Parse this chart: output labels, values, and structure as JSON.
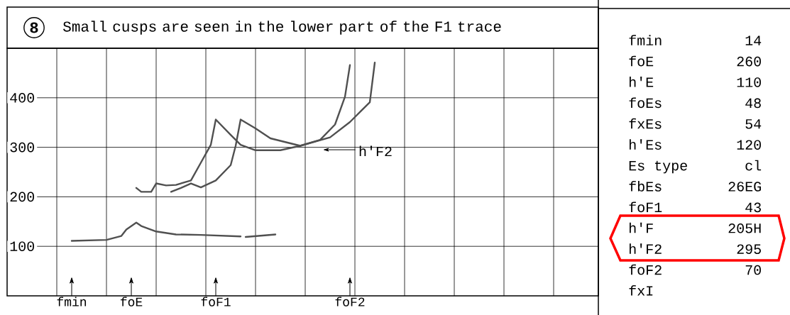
{
  "chart_data": [
    {
      "type": "line",
      "title": "Small cusps are seen in the lower part of the F1 trace",
      "annotations": [
        "8",
        "h'F2"
      ],
      "categories": [
        null,
        null,
        null,
        null,
        null,
        null,
        null,
        null,
        null,
        null,
        null,
        null,
        null,
        "fmin",
        null,
        null,
        null,
        null,
        null,
        null,
        null,
        null,
        null,
        null,
        null,
        "foE",
        null,
        null,
        null,
        null,
        null,
        null,
        null,
        null,
        null,
        null,
        null,
        null,
        null,
        null,
        null,
        null,
        "foF1",
        null,
        null,
        null,
        null,
        null,
        null,
        null,
        null,
        null,
        null,
        null,
        null,
        null,
        null,
        null,
        null,
        null,
        null,
        null,
        null,
        null,
        null,
        null,
        null,
        null,
        null,
        "foF2",
        null,
        null,
        null,
        null,
        null,
        null,
        null,
        null,
        null,
        null,
        null,
        null,
        null,
        null,
        null,
        null,
        null,
        null,
        null,
        null,
        null,
        null,
        null,
        null,
        null,
        null,
        null,
        null,
        null,
        null,
        null,
        null,
        null,
        null,
        null,
        null,
        null,
        null,
        null,
        null,
        null,
        null,
        null,
        null,
        null,
        null,
        null,
        null,
        null,
        null
      ],
      "ylim": [
        0,
        500
      ],
      "yticks": [
        100,
        200,
        300,
        400
      ],
      "grid": true,
      "series": [
        {
          "color": "#505050",
          "values": [
            null,
            null,
            null,
            null,
            null,
            null,
            null,
            null,
            null,
            null,
            null,
            null,
            null,
            111,
            null,
            null,
            null,
            null,
            null,
            null,
            113,
            null,
            null,
            121,
            134,
            null,
            148,
            141,
            null,
            null,
            130,
            null,
            null,
            null,
            124,
            null,
            null,
            null,
            null,
            123,
            null,
            null,
            null,
            null,
            null,
            null,
            null,
            120,
            null,
            null,
            null,
            null,
            null,
            null,
            null,
            null,
            null,
            null,
            null,
            null,
            null,
            null,
            null,
            null,
            null,
            null,
            null,
            null,
            null,
            null,
            null,
            null,
            null,
            null,
            null,
            null,
            null,
            null,
            null,
            null,
            null,
            null,
            null,
            null,
            null,
            null,
            null,
            null,
            null,
            null,
            null,
            null,
            null,
            null,
            null,
            null,
            null,
            null,
            null,
            null,
            null,
            null,
            null,
            null,
            null,
            null,
            null,
            null,
            null,
            null,
            null,
            null,
            null,
            null,
            null,
            null,
            null,
            null,
            null,
            null
          ]
        },
        {
          "color": "#505050",
          "values": [
            null,
            null,
            null,
            null,
            null,
            null,
            null,
            null,
            null,
            null,
            null,
            null,
            null,
            null,
            null,
            null,
            null,
            null,
            null,
            null,
            null,
            null,
            null,
            null,
            null,
            null,
            null,
            null,
            null,
            null,
            null,
            null,
            null,
            null,
            null,
            null,
            null,
            null,
            null,
            null,
            null,
            null,
            null,
            null,
            null,
            null,
            null,
            null,
            119,
            null,
            null,
            null,
            null,
            null,
            124,
            null,
            null,
            null,
            null,
            null,
            null,
            null,
            null,
            null,
            null,
            null,
            null,
            null,
            null,
            null,
            null,
            null,
            null,
            null,
            null,
            null,
            null,
            null,
            null,
            null,
            null,
            null,
            null,
            null,
            null,
            null,
            null,
            null,
            null,
            null,
            null,
            null,
            null,
            null,
            null,
            null,
            null,
            null,
            null,
            null,
            null,
            null,
            null,
            null,
            null,
            null,
            null,
            null,
            null,
            null,
            null,
            null,
            null,
            null,
            null,
            null,
            null,
            null,
            null,
            null
          ]
        },
        {
          "color": "#505050",
          "values": [
            null,
            null,
            null,
            null,
            null,
            null,
            null,
            null,
            null,
            null,
            null,
            null,
            null,
            null,
            null,
            null,
            null,
            null,
            null,
            null,
            null,
            null,
            null,
            null,
            null,
            null,
            218,
            210,
            null,
            210,
            227,
            null,
            223,
            null,
            224,
            null,
            null,
            233,
            null,
            269,
            null,
            305,
            356,
            null,
            null,
            325,
            null,
            305,
            null,
            null,
            294,
            null,
            null,
            null,
            null,
            294,
            null,
            null,
            null,
            303,
            null,
            null,
            null,
            315,
            null,
            null,
            346,
            null,
            402,
            466,
            null,
            null,
            null,
            null,
            null,
            null,
            null,
            null,
            null,
            null,
            null,
            null,
            null,
            null,
            null,
            null,
            null,
            null,
            null,
            null,
            null,
            null,
            null,
            null,
            null,
            null,
            null,
            null,
            null,
            null,
            null,
            null,
            null,
            null,
            null,
            null,
            null,
            null,
            null,
            null,
            null,
            null,
            null,
            null,
            null,
            null,
            null,
            null,
            null,
            null
          ]
        },
        {
          "color": "#505050",
          "values": [
            null,
            null,
            null,
            null,
            null,
            null,
            null,
            null,
            null,
            null,
            null,
            null,
            null,
            null,
            null,
            null,
            null,
            null,
            null,
            null,
            null,
            null,
            null,
            null,
            null,
            null,
            null,
            null,
            null,
            null,
            null,
            null,
            null,
            210,
            null,
            218,
            null,
            227,
            null,
            219,
            null,
            null,
            233,
            null,
            null,
            264,
            303,
            356,
            null,
            null,
            338,
            null,
            null,
            318,
            null,
            null,
            null,
            null,
            null,
            303,
            null,
            null,
            null,
            null,
            null,
            320,
            null,
            null,
            null,
            351,
            null,
            null,
            null,
            391,
            471,
            null,
            null,
            null,
            null,
            null,
            null,
            null,
            null,
            null,
            null,
            null,
            null,
            null,
            null,
            null,
            null,
            null,
            null,
            null,
            null,
            null,
            null,
            null,
            null,
            null,
            null,
            null,
            null,
            null,
            null,
            null,
            null,
            null,
            null,
            null,
            null,
            null,
            null,
            null,
            null,
            null,
            null,
            null,
            null,
            null
          ]
        }
      ]
    },
    {
      "type": "other",
      "categories": [
        "fmin",
        "foE",
        "h'E",
        "foEs",
        "fxEs",
        "h'Es",
        "Es type",
        "fbEs",
        "foF1",
        "h'F",
        "h'F2",
        "foF2",
        "fxI"
      ],
      "value_labels": [
        "14",
        "260",
        "110",
        "48",
        "54",
        "120",
        "cl",
        "26EG",
        "43",
        "205H",
        "295",
        "70",
        null
      ]
    }
  ]
}
